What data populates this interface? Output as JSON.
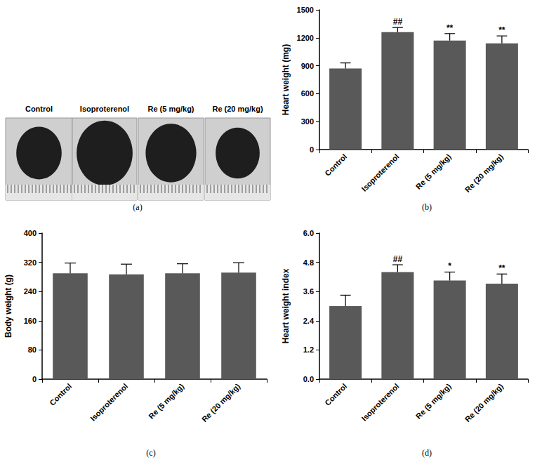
{
  "photo_panel": {
    "caption": "(a)",
    "labels": [
      "Control",
      "Isoproterenol",
      "Re (5 mg/kg)",
      "Re (20 mg/kg)"
    ]
  },
  "chart_data": [
    {
      "type": "bar",
      "annotations": [
        "(b)"
      ],
      "ylabel": "Heart weight (mg)",
      "categories": [
        "Control",
        "Isoproterenol",
        "Re (5 mg/kg)",
        "Re (20 mg/kg)"
      ],
      "values": [
        870,
        1260,
        1170,
        1140
      ],
      "errors": [
        60,
        50,
        75,
        80
      ],
      "significance": [
        null,
        "##",
        "**",
        "**"
      ],
      "color": "#595959",
      "ylim": [
        0,
        1500
      ],
      "yticks": [
        0,
        300,
        600,
        900,
        1200,
        1500
      ],
      "grid": false
    },
    {
      "type": "bar",
      "annotations": [
        "(c)"
      ],
      "ylabel": "Body weight (g)",
      "categories": [
        "Control",
        "Isoproterenol",
        "Re (5 mg/kg)",
        "Re (20 mg/kg)"
      ],
      "values": [
        290,
        287,
        290,
        292
      ],
      "errors": [
        28,
        28,
        26,
        27
      ],
      "significance": [
        null,
        null,
        null,
        null
      ],
      "color": "#595959",
      "ylim": [
        0,
        400
      ],
      "yticks": [
        0,
        80,
        160,
        240,
        320,
        400
      ],
      "grid": false
    },
    {
      "type": "bar",
      "annotations": [
        "(d)"
      ],
      "ylabel": "Heart weight index",
      "categories": [
        "Control",
        "Isoproterenol",
        "Re (5 mg/kg)",
        "Re (20 mg/kg)"
      ],
      "values": [
        3.0,
        4.4,
        4.05,
        3.92
      ],
      "errors": [
        0.45,
        0.3,
        0.35,
        0.4
      ],
      "significance": [
        null,
        "##",
        "*",
        "**"
      ],
      "color": "#595959",
      "ylim": [
        0,
        6
      ],
      "yticks": [
        {
          "value": 0,
          "label": "0.0"
        },
        1.2,
        2.4,
        3.6,
        4.8,
        {
          "value": 6,
          "label": "6.0"
        }
      ],
      "grid": false
    }
  ]
}
